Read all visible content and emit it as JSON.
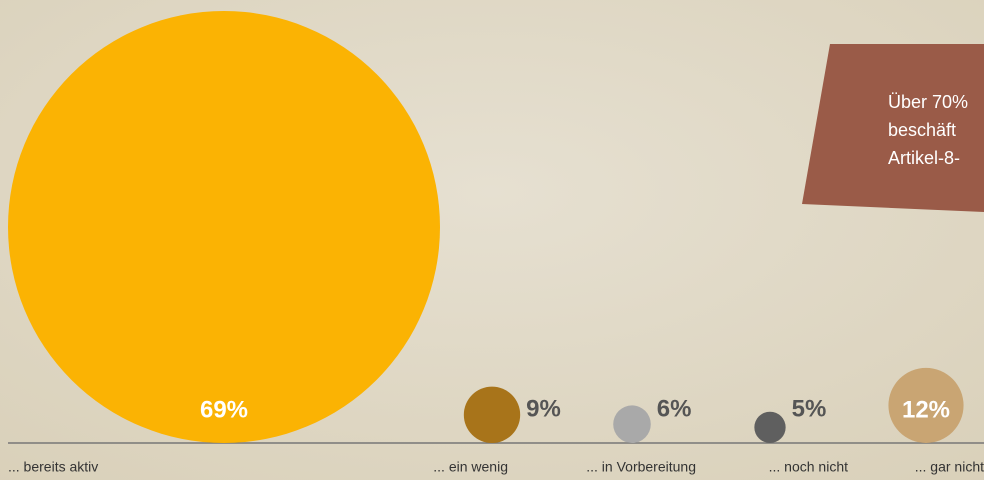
{
  "chart_data": {
    "type": "bubble",
    "categories": [
      "... bereits aktiv",
      "... ein wenig",
      "... in Vorbereitung",
      "... noch nicht",
      "... gar nicht"
    ],
    "values": [
      69,
      9,
      6,
      5,
      12
    ],
    "value_labels": [
      "69%",
      "9%",
      "6%",
      "5%",
      "12%"
    ],
    "colors": [
      "#fbb303",
      "#a8741a",
      "#a9a9a9",
      "#5f5f5f",
      "#c9a573"
    ],
    "annotation": [
      "Über 70%",
      "beschäft",
      "Artikel-8-"
    ]
  }
}
